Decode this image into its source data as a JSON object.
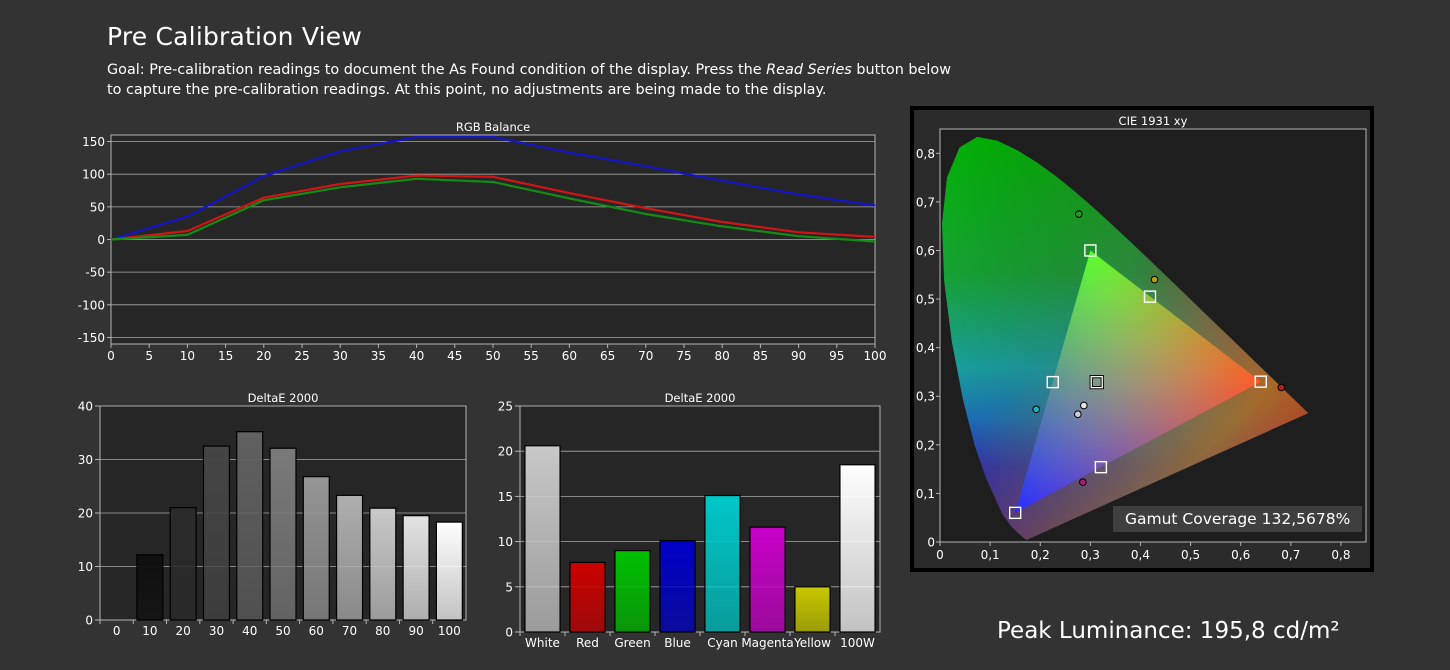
{
  "header": {
    "title": "Pre Calibration View",
    "goal_before": "Goal: Pre-calibration readings to document the As Found condition of the display. Press the ",
    "goal_emphasis": "Read Series",
    "goal_after": " button below to capture the pre-calibration readings. At this point, no adjustments are being made to the display."
  },
  "footer": {
    "gamut_coverage": "Gamut Coverage 132,5678%",
    "peak_luminance": "Peak Luminance: 195,8 cd/m²"
  },
  "chart_data": [
    {
      "type": "line",
      "title": "RGB Balance",
      "xlim": [
        0,
        100
      ],
      "ylim": [
        -160,
        160
      ],
      "x_ticks": [
        0,
        5,
        10,
        15,
        20,
        25,
        30,
        35,
        40,
        45,
        50,
        55,
        60,
        65,
        70,
        75,
        80,
        85,
        90,
        95,
        100
      ],
      "y_ticks": [
        -150,
        -100,
        -50,
        0,
        50,
        100,
        150
      ],
      "grid": true,
      "x": [
        0,
        10,
        20,
        30,
        40,
        50,
        60,
        70,
        80,
        90,
        100
      ],
      "series": [
        {
          "color": "#1414c8",
          "values": [
            0,
            35,
            97,
            135,
            157,
            157,
            133,
            112,
            90,
            69,
            52
          ]
        },
        {
          "color": "#d21414",
          "values": [
            0,
            13,
            64,
            85,
            98,
            96,
            71,
            48,
            27,
            11,
            4
          ]
        },
        {
          "color": "#148c14",
          "values": [
            0,
            7,
            60,
            80,
            93,
            88,
            63,
            39,
            20,
            5,
            -3
          ]
        }
      ]
    },
    {
      "type": "bar",
      "title": "DeltaE 2000",
      "categories": [
        "0",
        "10",
        "20",
        "30",
        "40",
        "50",
        "60",
        "70",
        "80",
        "90",
        "100"
      ],
      "values": [
        0,
        12.2,
        21.0,
        32.5,
        35.2,
        32.1,
        26.8,
        23.3,
        20.9,
        19.5,
        18.3
      ],
      "colors": [
        "#000000",
        "#0f0f0f",
        "#2a2a2a",
        "#454545",
        "#606060",
        "#7a7a7a",
        "#959595",
        "#afafaf",
        "#c9c9c9",
        "#e3e3e3",
        "#ffffff"
      ],
      "ylim": [
        0,
        40
      ],
      "y_ticks": [
        0,
        10,
        20,
        30,
        40
      ],
      "grid": true
    },
    {
      "type": "bar",
      "title": "DeltaE 2000",
      "categories": [
        "White",
        "Red",
        "Green",
        "Blue",
        "Cyan",
        "Magenta",
        "Yellow",
        "100W"
      ],
      "values": [
        20.6,
        7.7,
        9.0,
        10.1,
        15.1,
        11.6,
        5.0,
        18.5
      ],
      "colors": [
        "#c8c8c8",
        "#cc0000",
        "#00c000",
        "#0000c8",
        "#00c8c8",
        "#c800c8",
        "#c8c800",
        "#ffffff"
      ],
      "ylim": [
        0,
        25
      ],
      "y_ticks": [
        0,
        5,
        10,
        15,
        20,
        25
      ],
      "grid": true
    },
    {
      "type": "scatter",
      "title": "CIE 1931 xy",
      "xlim": [
        0,
        0.85
      ],
      "ylim": [
        0,
        0.85
      ],
      "x_ticks": [
        "0",
        "0,1",
        "0,2",
        "0,3",
        "0,4",
        "0,5",
        "0,6",
        "0,7",
        "0,8"
      ],
      "y_ticks": [
        "0",
        "0,1",
        "0,2",
        "0,3",
        "0,4",
        "0,5",
        "0,6",
        "0,7",
        "0,8"
      ],
      "targets": [
        {
          "x": 0.64,
          "y": 0.33
        },
        {
          "x": 0.3,
          "y": 0.6
        },
        {
          "x": 0.15,
          "y": 0.06
        },
        {
          "x": 0.225,
          "y": 0.329
        },
        {
          "x": 0.321,
          "y": 0.154
        },
        {
          "x": 0.419,
          "y": 0.505
        },
        {
          "x": 0.3127,
          "y": 0.329
        }
      ],
      "measured": [
        {
          "x": 0.681,
          "y": 0.318,
          "color": "#b41e1e"
        },
        {
          "x": 0.277,
          "y": 0.675,
          "color": "#1ea01e"
        },
        {
          "x": 0.428,
          "y": 0.54,
          "color": "#b4a01e"
        },
        {
          "x": 0.192,
          "y": 0.273,
          "color": "#1eb4b4"
        },
        {
          "x": 0.285,
          "y": 0.123,
          "color": "#a01e78"
        },
        {
          "x": 0.287,
          "y": 0.281,
          "color": "#e6e6e6"
        },
        {
          "x": 0.275,
          "y": 0.263,
          "color": "#cccccc"
        }
      ]
    }
  ]
}
